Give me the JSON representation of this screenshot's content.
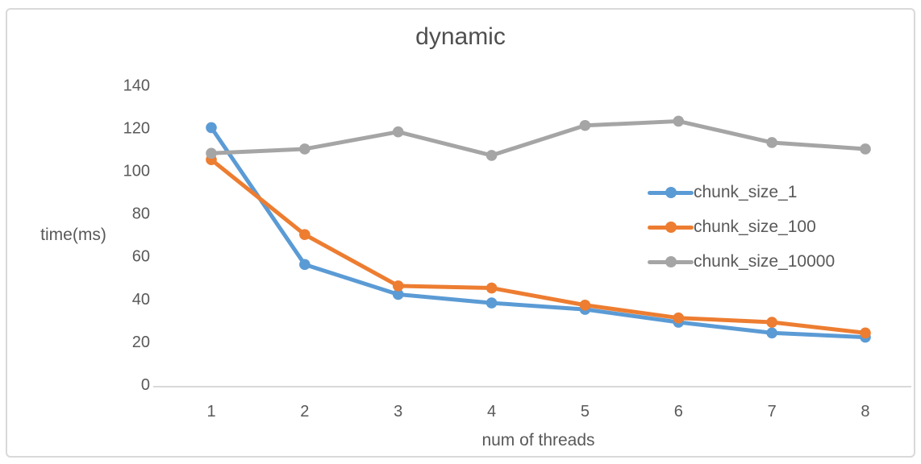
{
  "chart_data": {
    "type": "line",
    "title": "dynamic",
    "xlabel": "num of threads",
    "ylabel": "time(ms)",
    "x": [
      1,
      2,
      3,
      4,
      5,
      6,
      7,
      8
    ],
    "series": [
      {
        "name": "chunk_size_1",
        "color": "#5B9BD5",
        "values": [
          120,
          56,
          42,
          38,
          35,
          29,
          24,
          22
        ]
      },
      {
        "name": "chunk_size_100",
        "color": "#ED7D31",
        "values": [
          105,
          70,
          46,
          45,
          37,
          31,
          29,
          24
        ]
      },
      {
        "name": "chunk_size_10000",
        "color": "#A5A5A5",
        "values": [
          108,
          110,
          118,
          107,
          121,
          123,
          113,
          110
        ]
      }
    ],
    "ylim": [
      0,
      140
    ],
    "ytick_step": 20,
    "grid": false,
    "legend_position": "middle-right",
    "marker": "circle"
  },
  "colors": {
    "axis_line": "#d9d9d9",
    "tick_text": "#595959",
    "frame_border": "#d9d9d9",
    "background": "#ffffff"
  }
}
